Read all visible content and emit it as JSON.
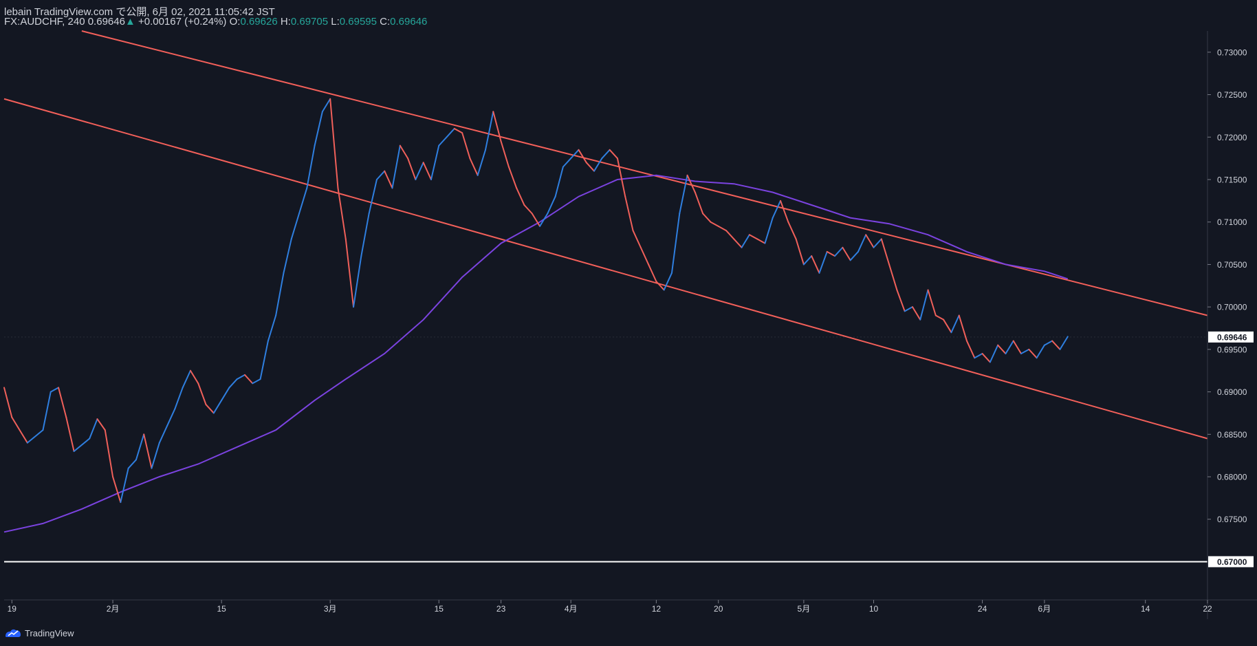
{
  "header": {
    "publisher": "lebain TradingView.com で公開, 6月 02, 2021 11:05:42 JST",
    "symbol": "FX:AUDCHF, 240",
    "last": "0.69646",
    "change_arrow": "▲",
    "change": "+0.00167 (+0.24%)",
    "o_label": "O:",
    "o_value": "0.69626",
    "h_label": "H:",
    "h_value": "0.69705",
    "l_label": "L:",
    "l_value": "0.69595",
    "c_label": "C:",
    "c_value": "0.69646"
  },
  "footer": {
    "brand": "TradingView"
  },
  "colors": {
    "background": "#131722",
    "up_candle": "#2f7fe0",
    "down_candle": "#f0605a",
    "channel": "#f4605a",
    "moving_average": "#7b43e0",
    "support_line": "#ffffff",
    "text": "#d1d4dc",
    "axis_text": "#d1d4dc"
  },
  "chart_data": {
    "type": "line",
    "price_scale": {
      "ylim": [
        0.6655,
        0.7325
      ],
      "ticks": [
        "0.73000",
        "0.72500",
        "0.72000",
        "0.71500",
        "0.71000",
        "0.70500",
        "0.70000",
        "0.69500",
        "0.69000",
        "0.68500",
        "0.68000",
        "0.67500"
      ],
      "tick_values": [
        0.73,
        0.725,
        0.72,
        0.715,
        0.71,
        0.705,
        0.7,
        0.695,
        0.69,
        0.685,
        0.68,
        0.675
      ]
    },
    "time_scale": {
      "xlim": [
        "2021-01-18",
        "2021-06-22"
      ],
      "ticks": [
        {
          "date": "2021-01-19",
          "label": "19"
        },
        {
          "date": "2021-02-01",
          "label": "2月"
        },
        {
          "date": "2021-02-15",
          "label": "15"
        },
        {
          "date": "2021-03-01",
          "label": "3月"
        },
        {
          "date": "2021-03-15",
          "label": "15"
        },
        {
          "date": "2021-03-23",
          "label": "23"
        },
        {
          "date": "2021-04-01",
          "label": "4月"
        },
        {
          "date": "2021-04-12",
          "label": "12"
        },
        {
          "date": "2021-04-20",
          "label": "20"
        },
        {
          "date": "2021-05-01",
          "label": "5月"
        },
        {
          "date": "2021-05-10",
          "label": "10"
        },
        {
          "date": "2021-05-24",
          "label": "24"
        },
        {
          "date": "2021-06-01",
          "label": "6月"
        },
        {
          "date": "2021-06-14",
          "label": "14"
        },
        {
          "date": "2021-06-22",
          "label": "22"
        }
      ]
    },
    "price_path": {
      "name": "",
      "points": [
        [
          "2021-01-18",
          0.6905
        ],
        [
          "2021-01-19",
          0.687
        ],
        [
          "2021-01-21",
          0.684
        ],
        [
          "2021-01-23",
          0.6855
        ],
        [
          "2021-01-24",
          0.69
        ],
        [
          "2021-01-25",
          0.6905
        ],
        [
          "2021-01-26",
          0.687
        ],
        [
          "2021-01-27",
          0.683
        ],
        [
          "2021-01-29",
          0.6845
        ],
        [
          "2021-01-30",
          0.6868
        ],
        [
          "2021-01-31",
          0.6855
        ],
        [
          "2021-02-01",
          0.68
        ],
        [
          "2021-02-02",
          0.677
        ],
        [
          "2021-02-03",
          0.681
        ],
        [
          "2021-02-04",
          0.682
        ],
        [
          "2021-02-05",
          0.685
        ],
        [
          "2021-02-06",
          0.681
        ],
        [
          "2021-02-07",
          0.684
        ],
        [
          "2021-02-08",
          0.686
        ],
        [
          "2021-02-09",
          0.688
        ],
        [
          "2021-02-10",
          0.6905
        ],
        [
          "2021-02-11",
          0.6925
        ],
        [
          "2021-02-12",
          0.691
        ],
        [
          "2021-02-13",
          0.6885
        ],
        [
          "2021-02-14",
          0.6875
        ],
        [
          "2021-02-15",
          0.689
        ],
        [
          "2021-02-16",
          0.6905
        ],
        [
          "2021-02-17",
          0.6915
        ],
        [
          "2021-02-18",
          0.692
        ],
        [
          "2021-02-19",
          0.691
        ],
        [
          "2021-02-20",
          0.6915
        ],
        [
          "2021-02-21",
          0.696
        ],
        [
          "2021-02-22",
          0.699
        ],
        [
          "2021-02-23",
          0.704
        ],
        [
          "2021-02-24",
          0.708
        ],
        [
          "2021-02-25",
          0.711
        ],
        [
          "2021-02-26",
          0.714
        ],
        [
          "2021-02-27",
          0.719
        ],
        [
          "2021-02-28",
          0.723
        ],
        [
          "2021-03-01",
          0.7245
        ],
        [
          "2021-03-02",
          0.714
        ],
        [
          "2021-03-03",
          0.708
        ],
        [
          "2021-03-04",
          0.7
        ],
        [
          "2021-03-05",
          0.706
        ],
        [
          "2021-03-06",
          0.711
        ],
        [
          "2021-03-07",
          0.715
        ],
        [
          "2021-03-08",
          0.716
        ],
        [
          "2021-03-09",
          0.714
        ],
        [
          "2021-03-10",
          0.719
        ],
        [
          "2021-03-11",
          0.7175
        ],
        [
          "2021-03-12",
          0.715
        ],
        [
          "2021-03-13",
          0.717
        ],
        [
          "2021-03-14",
          0.715
        ],
        [
          "2021-03-15",
          0.719
        ],
        [
          "2021-03-16",
          0.72
        ],
        [
          "2021-03-17",
          0.721
        ],
        [
          "2021-03-18",
          0.7205
        ],
        [
          "2021-03-19",
          0.7175
        ],
        [
          "2021-03-20",
          0.7155
        ],
        [
          "2021-03-21",
          0.7185
        ],
        [
          "2021-03-22",
          0.723
        ],
        [
          "2021-03-23",
          0.7195
        ],
        [
          "2021-03-24",
          0.7165
        ],
        [
          "2021-03-25",
          0.714
        ],
        [
          "2021-03-26",
          0.712
        ],
        [
          "2021-03-27",
          0.711
        ],
        [
          "2021-03-28",
          0.7095
        ],
        [
          "2021-03-29",
          0.711
        ],
        [
          "2021-03-30",
          0.713
        ],
        [
          "2021-03-31",
          0.7165
        ],
        [
          "2021-04-01",
          0.7175
        ],
        [
          "2021-04-02",
          0.7185
        ],
        [
          "2021-04-03",
          0.717
        ],
        [
          "2021-04-04",
          0.716
        ],
        [
          "2021-04-05",
          0.7175
        ],
        [
          "2021-04-06",
          0.7185
        ],
        [
          "2021-04-07",
          0.7175
        ],
        [
          "2021-04-08",
          0.713
        ],
        [
          "2021-04-09",
          0.709
        ],
        [
          "2021-04-10",
          0.707
        ],
        [
          "2021-04-11",
          0.705
        ],
        [
          "2021-04-12",
          0.703
        ],
        [
          "2021-04-13",
          0.702
        ],
        [
          "2021-04-14",
          0.704
        ],
        [
          "2021-04-15",
          0.711
        ],
        [
          "2021-04-16",
          0.7155
        ],
        [
          "2021-04-17",
          0.7135
        ],
        [
          "2021-04-18",
          0.711
        ],
        [
          "2021-04-19",
          0.71
        ],
        [
          "2021-04-20",
          0.7095
        ],
        [
          "2021-04-21",
          0.709
        ],
        [
          "2021-04-22",
          0.708
        ],
        [
          "2021-04-23",
          0.707
        ],
        [
          "2021-04-24",
          0.7085
        ],
        [
          "2021-04-25",
          0.708
        ],
        [
          "2021-04-26",
          0.7075
        ],
        [
          "2021-04-27",
          0.7105
        ],
        [
          "2021-04-28",
          0.7125
        ],
        [
          "2021-04-29",
          0.71
        ],
        [
          "2021-04-30",
          0.708
        ],
        [
          "2021-05-01",
          0.705
        ],
        [
          "2021-05-02",
          0.706
        ],
        [
          "2021-05-03",
          0.704
        ],
        [
          "2021-05-04",
          0.7065
        ],
        [
          "2021-05-05",
          0.706
        ],
        [
          "2021-05-06",
          0.707
        ],
        [
          "2021-05-07",
          0.7055
        ],
        [
          "2021-05-08",
          0.7065
        ],
        [
          "2021-05-09",
          0.7085
        ],
        [
          "2021-05-10",
          0.707
        ],
        [
          "2021-05-11",
          0.708
        ],
        [
          "2021-05-12",
          0.705
        ],
        [
          "2021-05-13",
          0.702
        ],
        [
          "2021-05-14",
          0.6995
        ],
        [
          "2021-05-15",
          0.7
        ],
        [
          "2021-05-16",
          0.6985
        ],
        [
          "2021-05-17",
          0.702
        ],
        [
          "2021-05-18",
          0.699
        ],
        [
          "2021-05-19",
          0.6985
        ],
        [
          "2021-05-20",
          0.697
        ],
        [
          "2021-05-21",
          0.699
        ],
        [
          "2021-05-22",
          0.696
        ],
        [
          "2021-05-23",
          0.694
        ],
        [
          "2021-05-24",
          0.6945
        ],
        [
          "2021-05-25",
          0.6935
        ],
        [
          "2021-05-26",
          0.6955
        ],
        [
          "2021-05-27",
          0.6945
        ],
        [
          "2021-05-28",
          0.696
        ],
        [
          "2021-05-29",
          0.6945
        ],
        [
          "2021-05-30",
          0.695
        ],
        [
          "2021-05-31",
          0.694
        ],
        [
          "2021-06-01",
          0.6955
        ],
        [
          "2021-06-02",
          0.696
        ],
        [
          "2021-06-03",
          0.695
        ],
        [
          "2021-06-04",
          0.6965
        ]
      ]
    },
    "moving_average": {
      "name": "",
      "points": [
        [
          "2021-01-18",
          0.6735
        ],
        [
          "2021-01-23",
          0.6745
        ],
        [
          "2021-01-28",
          0.6762
        ],
        [
          "2021-02-02",
          0.6782
        ],
        [
          "2021-02-07",
          0.68
        ],
        [
          "2021-02-12",
          0.6815
        ],
        [
          "2021-02-17",
          0.6835
        ],
        [
          "2021-02-22",
          0.6855
        ],
        [
          "2021-02-27",
          0.689
        ],
        [
          "2021-03-03",
          0.6915
        ],
        [
          "2021-03-08",
          0.6945
        ],
        [
          "2021-03-13",
          0.6985
        ],
        [
          "2021-03-18",
          0.7035
        ],
        [
          "2021-03-23",
          0.7075
        ],
        [
          "2021-03-28",
          0.71
        ],
        [
          "2021-04-02",
          0.713
        ],
        [
          "2021-04-07",
          0.715
        ],
        [
          "2021-04-12",
          0.7155
        ],
        [
          "2021-04-17",
          0.7148
        ],
        [
          "2021-04-22",
          0.7145
        ],
        [
          "2021-04-27",
          0.7135
        ],
        [
          "2021-05-02",
          0.712
        ],
        [
          "2021-05-07",
          0.7105
        ],
        [
          "2021-05-12",
          0.7098
        ],
        [
          "2021-05-17",
          0.7085
        ],
        [
          "2021-05-22",
          0.7065
        ],
        [
          "2021-05-27",
          0.705
        ],
        [
          "2021-06-01",
          0.7042
        ],
        [
          "2021-06-04",
          0.7033
        ]
      ]
    },
    "channel_upper": {
      "start": [
        "2021-01-28",
        0.7325
      ],
      "end": [
        "2021-06-22",
        0.699
      ]
    },
    "channel_lower": {
      "start": [
        "2021-01-18",
        0.7245
      ],
      "end": [
        "2021-06-22",
        0.6845
      ]
    },
    "support_level": {
      "value": 0.67,
      "label": "0.67000"
    },
    "last_price": {
      "value": 0.69646,
      "label": "0.69646"
    }
  }
}
